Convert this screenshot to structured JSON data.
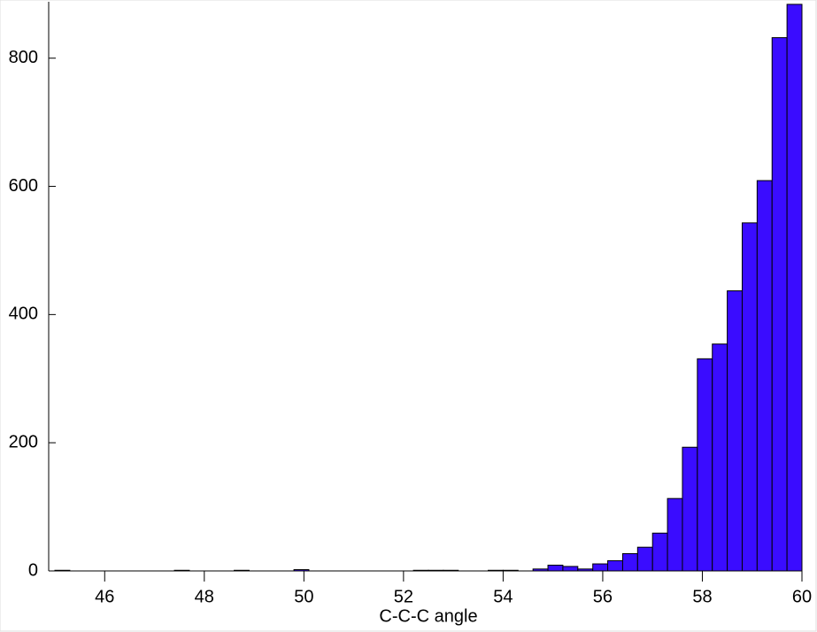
{
  "chart_data": {
    "type": "histogram",
    "xlabel": "C-C-C angle",
    "bins": [
      45.0,
      45.3,
      45.6,
      45.9,
      46.2,
      46.5,
      46.8,
      47.1,
      47.4,
      47.7,
      48.0,
      48.3,
      48.6,
      48.9,
      49.2,
      49.5,
      49.8,
      50.1,
      50.4,
      50.7,
      51.0,
      51.3,
      51.6,
      51.9,
      52.2,
      52.5,
      52.8,
      53.1,
      53.4,
      53.7,
      54.0,
      54.3,
      54.6,
      54.9,
      55.2,
      55.5,
      55.8,
      56.1,
      56.4,
      56.7,
      57.0,
      57.3,
      57.6,
      57.9,
      58.2,
      58.5,
      58.8,
      59.1,
      59.4,
      59.7,
      60.0
    ],
    "values": [
      1,
      0,
      0,
      0,
      0,
      0,
      0,
      0,
      1,
      0,
      0,
      0,
      1,
      0,
      0,
      0,
      2,
      0,
      0,
      0,
      0,
      0,
      0,
      0,
      1,
      1,
      1,
      0,
      0,
      1,
      1,
      0,
      3,
      9,
      7,
      3,
      11,
      16,
      27,
      37,
      59,
      113,
      193,
      331,
      354,
      437,
      543,
      609,
      832,
      884
    ],
    "color": "#3a0cff",
    "xlim": [
      45,
      60
    ],
    "ylim": [
      0,
      888
    ],
    "xticks": [
      46,
      48,
      50,
      52,
      54,
      56,
      58,
      60
    ],
    "yticks": [
      0,
      200,
      400,
      600,
      800
    ]
  }
}
